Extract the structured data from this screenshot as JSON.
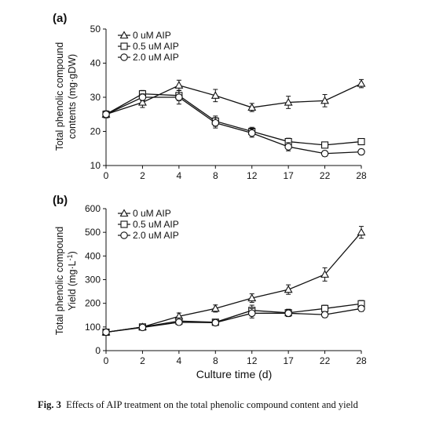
{
  "caption": {
    "label": "Fig. 3",
    "text": "Effects of AIP treatment on the total phenolic compound content and yield"
  },
  "chart_data": [
    {
      "type": "line",
      "panel": "(a)",
      "ylabel_line1": "Total phenolic compound",
      "ylabel_line2": "contents (mg·gDW)",
      "xlabel": "",
      "categories": [
        "0",
        "2",
        "4",
        "8",
        "12",
        "17",
        "22",
        "28"
      ],
      "ylim": [
        10,
        50
      ],
      "yticks": [
        10,
        20,
        30,
        40,
        50
      ],
      "legend": "top-left",
      "series": [
        {
          "name": "0 uM AIP",
          "marker": "triangle",
          "values": [
            25,
            28.5,
            33.5,
            30.5,
            27,
            28.5,
            29,
            34
          ],
          "errors": [
            1,
            1.5,
            1.5,
            1.8,
            1.2,
            1.8,
            1.8,
            1.2
          ]
        },
        {
          "name": "0.5 uM AIP",
          "marker": "square",
          "values": [
            25,
            31,
            30.5,
            23,
            20,
            17,
            16,
            17
          ],
          "errors": [
            1,
            1,
            1.5,
            1.5,
            1.2,
            1,
            0.8,
            0.8
          ]
        },
        {
          "name": "2.0 uM AIP",
          "marker": "circle",
          "values": [
            25,
            30,
            30,
            22.5,
            19.5,
            15.5,
            13.5,
            14
          ],
          "errors": [
            1,
            1,
            2,
            1.5,
            1.2,
            1.2,
            0.8,
            0.8
          ]
        }
      ]
    },
    {
      "type": "line",
      "panel": "(b)",
      "ylabel_line1": "Total phenolic compound",
      "ylabel_line2": "Yield (mg·L",
      "ylabel_sup": "-1",
      "ylabel_end": ")",
      "xlabel": "Culture time (d)",
      "categories": [
        "0",
        "2",
        "4",
        "8",
        "12",
        "17",
        "22",
        "28"
      ],
      "ylim": [
        0,
        600
      ],
      "yticks": [
        0,
        100,
        200,
        300,
        400,
        500,
        600
      ],
      "legend": "top-left",
      "series": [
        {
          "name": "0 uM AIP",
          "marker": "triangle",
          "values": [
            78,
            100,
            145,
            178,
            222,
            258,
            322,
            500
          ],
          "errors": [
            8,
            12,
            14,
            15,
            18,
            20,
            28,
            25
          ]
        },
        {
          "name": "0.5 uM AIP",
          "marker": "square",
          "values": [
            78,
            100,
            125,
            120,
            170,
            160,
            178,
            198
          ],
          "errors": [
            8,
            10,
            12,
            12,
            22,
            15,
            14,
            14
          ]
        },
        {
          "name": "2.0 uM AIP",
          "marker": "circle",
          "values": [
            78,
            98,
            120,
            118,
            158,
            158,
            152,
            178
          ],
          "errors": [
            8,
            10,
            12,
            12,
            20,
            14,
            12,
            12
          ]
        }
      ]
    }
  ]
}
